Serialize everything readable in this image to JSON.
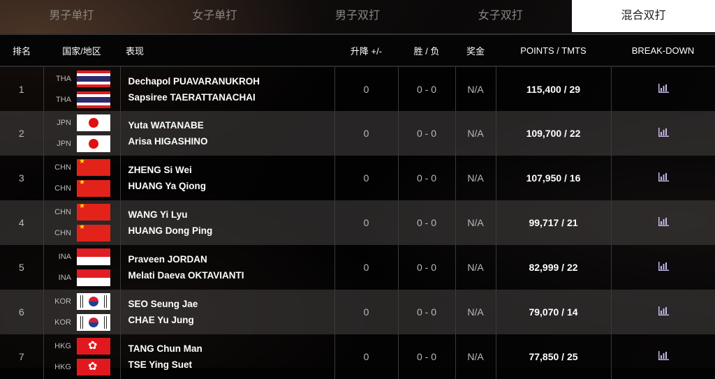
{
  "tabs": [
    {
      "label": "男子单打"
    },
    {
      "label": "女子单打"
    },
    {
      "label": "男子双打"
    },
    {
      "label": "女子双打"
    },
    {
      "label": "混合双打",
      "active": true
    }
  ],
  "headers": {
    "rank": "排名",
    "country": "国家/地区",
    "players": "表现",
    "change": "升降 +/-",
    "winloss": "胜 / 负",
    "prize": "奖金",
    "points": "POINTS / TMTS",
    "breakdown": "BREAK-DOWN"
  },
  "breakdown_icon": "bar-chart-icon",
  "rows": [
    {
      "rank": "1",
      "c1": "THA",
      "c2": "THA",
      "p1": "Dechapol PUAVARANUKROH",
      "p2": "Sapsiree TAERATTANACHAI",
      "change": "0",
      "winloss": "0 - 0",
      "prize": "N/A",
      "points": "115,400 / 29"
    },
    {
      "rank": "2",
      "c1": "JPN",
      "c2": "JPN",
      "p1": "Yuta WATANABE",
      "p2": "Arisa HIGASHINO",
      "change": "0",
      "winloss": "0 - 0",
      "prize": "N/A",
      "points": "109,700 / 22"
    },
    {
      "rank": "3",
      "c1": "CHN",
      "c2": "CHN",
      "p1": "ZHENG Si Wei",
      "p2": "HUANG Ya Qiong",
      "change": "0",
      "winloss": "0 - 0",
      "prize": "N/A",
      "points": "107,950 / 16"
    },
    {
      "rank": "4",
      "c1": "CHN",
      "c2": "CHN",
      "p1": "WANG Yi Lyu",
      "p2": "HUANG Dong Ping",
      "change": "0",
      "winloss": "0 - 0",
      "prize": "N/A",
      "points": "99,717 / 21"
    },
    {
      "rank": "5",
      "c1": "INA",
      "c2": "INA",
      "p1": "Praveen JORDAN",
      "p2": "Melati Daeva OKTAVIANTI",
      "change": "0",
      "winloss": "0 - 0",
      "prize": "N/A",
      "points": "82,999 / 22"
    },
    {
      "rank": "6",
      "c1": "KOR",
      "c2": "KOR",
      "p1": "SEO Seung Jae",
      "p2": "CHAE Yu Jung",
      "change": "0",
      "winloss": "0 - 0",
      "prize": "N/A",
      "points": "79,070 / 14"
    },
    {
      "rank": "7",
      "c1": "HKG",
      "c2": "HKG",
      "p1": "TANG Chun Man",
      "p2": "TSE Ying Suet",
      "change": "0",
      "winloss": "0 - 0",
      "prize": "N/A",
      "points": "77,850 / 25"
    }
  ]
}
